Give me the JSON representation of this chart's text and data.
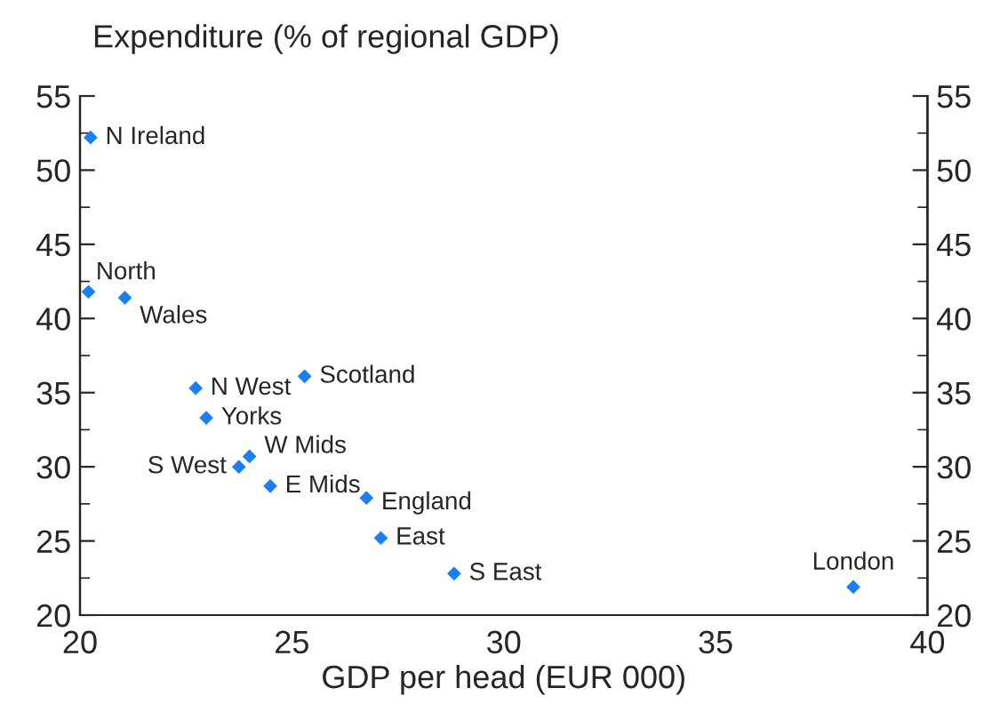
{
  "chart_data": {
    "type": "scatter",
    "ylabel": "Expenditure (% of regional GDP)",
    "xlabel": "GDP per head (EUR 000)",
    "x": [
      20.25,
      20.2,
      21.06,
      22.73,
      25.3,
      22.98,
      23.75,
      24.0,
      24.49,
      26.76,
      27.1,
      28.83,
      38.25
    ],
    "series": [
      {
        "color": "#1a7ff0",
        "values": [
          52.2,
          41.8,
          41.4,
          35.3,
          36.1,
          33.3,
          30.0,
          30.7,
          28.7,
          27.9,
          25.2,
          22.8,
          21.9
        ]
      }
    ],
    "annotations": [
      {
        "text": "N Ireland",
        "x": 20.25,
        "y": 52.2
      },
      {
        "text": "North",
        "x": 20.2,
        "y": 41.8
      },
      {
        "text": "Wales",
        "x": 21.06,
        "y": 41.4
      },
      {
        "text": "N West",
        "x": 22.73,
        "y": 35.3
      },
      {
        "text": "Scotland",
        "x": 25.3,
        "y": 36.1
      },
      {
        "text": "Yorks",
        "x": 22.98,
        "y": 33.3
      },
      {
        "text": "S West",
        "x": 23.75,
        "y": 30.0
      },
      {
        "text": "W Mids",
        "x": 24.0,
        "y": 30.7
      },
      {
        "text": "E Mids",
        "x": 24.49,
        "y": 28.7
      },
      {
        "text": "England",
        "x": 26.76,
        "y": 27.9
      },
      {
        "text": "East",
        "x": 27.1,
        "y": 25.2
      },
      {
        "text": "S East",
        "x": 28.83,
        "y": 22.8
      },
      {
        "text": "London",
        "x": 38.25,
        "y": 21.9
      }
    ],
    "xlim": [
      20,
      40
    ],
    "xticks": [
      20,
      25,
      30,
      35,
      40
    ],
    "ylim": [
      20,
      55
    ],
    "yticks": [
      20,
      25,
      30,
      35,
      40,
      45,
      50,
      55
    ],
    "y2lim": [
      20,
      55
    ],
    "y2ticks": [
      20,
      25,
      30,
      35,
      40,
      45,
      50,
      55
    ],
    "marker": "diamond",
    "grid": false
  }
}
